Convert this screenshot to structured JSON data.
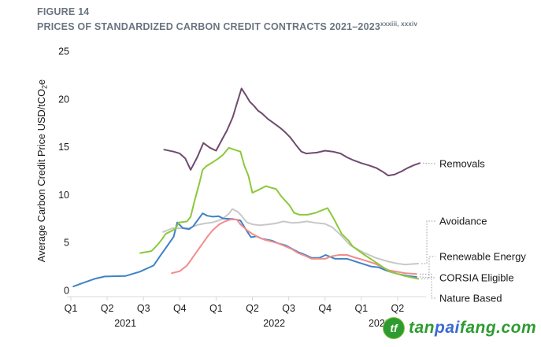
{
  "header": {
    "figure_label": "FIGURE 14",
    "title": "PRICES OF STANDARDIZED CARBON CREDIT CONTRACTS 2021–2023",
    "title_superscript": "xxxiii, xxxiv"
  },
  "chart_data": {
    "type": "line",
    "title": "PRICES OF STANDARDIZED CARBON CREDIT CONTRACTS 2021–2023",
    "ylabel": "Average Carbon Credit Price USD/tCO2e",
    "ylabel_parts": {
      "main": "Average Carbon Credit Price USD/tCO",
      "sub": "2",
      "tail": "e"
    },
    "ylim": [
      0,
      25
    ],
    "yticks": [
      0,
      5,
      10,
      15,
      20,
      25
    ],
    "grid": false,
    "legend_position": "right-of-line-ends",
    "axis_color": "#d8d8d8",
    "connector_color": "#999999",
    "text_color": "#1a1a1a",
    "x_axis": {
      "unit": "quarter index from Q1 2021",
      "quarter_labels": [
        "Q1",
        "Q2",
        "Q3",
        "Q4",
        "Q1",
        "Q2",
        "Q3",
        "Q4",
        "Q1",
        "Q2"
      ],
      "year_labels": [
        {
          "label": "2021",
          "center_q": 1.5
        },
        {
          "label": "2022",
          "center_q": 5.6
        },
        {
          "label": "2023",
          "center_q": 8.5
        }
      ]
    },
    "series": [
      {
        "name": "Avoidance",
        "color": "#c8c8c8",
        "points": [
          [
            2.54,
            6.1
          ],
          [
            2.8,
            6.5
          ],
          [
            3.0,
            6.5
          ],
          [
            3.25,
            6.5
          ],
          [
            3.5,
            6.85
          ],
          [
            3.7,
            7.0
          ],
          [
            3.9,
            7.1
          ],
          [
            4.15,
            7.4
          ],
          [
            4.35,
            8.0
          ],
          [
            4.45,
            8.5
          ],
          [
            4.6,
            8.2
          ],
          [
            4.7,
            7.8
          ],
          [
            4.85,
            7.1
          ],
          [
            5.0,
            6.9
          ],
          [
            5.2,
            6.8
          ],
          [
            5.45,
            6.9
          ],
          [
            5.65,
            7.0
          ],
          [
            5.85,
            7.2
          ],
          [
            6.1,
            7.05
          ],
          [
            6.3,
            7.1
          ],
          [
            6.5,
            7.2
          ],
          [
            6.75,
            7.05
          ],
          [
            7.0,
            6.95
          ],
          [
            7.2,
            6.6
          ],
          [
            7.4,
            5.9
          ],
          [
            7.7,
            4.7
          ],
          [
            8.04,
            4.0
          ],
          [
            8.4,
            3.4
          ],
          [
            8.75,
            3.0
          ],
          [
            9.0,
            2.8
          ],
          [
            9.2,
            2.7
          ],
          [
            9.57,
            2.8
          ]
        ]
      },
      {
        "name": "CORSIA Eligible",
        "color": "#3e82c6",
        "points": [
          [
            0.07,
            0.4
          ],
          [
            0.35,
            0.8
          ],
          [
            0.65,
            1.2
          ],
          [
            0.93,
            1.45
          ],
          [
            1.5,
            1.5
          ],
          [
            1.9,
            1.95
          ],
          [
            2.28,
            2.6
          ],
          [
            2.46,
            3.6
          ],
          [
            2.61,
            4.4
          ],
          [
            2.83,
            5.6
          ],
          [
            2.93,
            7.1
          ],
          [
            3.09,
            6.5
          ],
          [
            3.26,
            6.4
          ],
          [
            3.37,
            6.7
          ],
          [
            3.63,
            8.05
          ],
          [
            3.76,
            7.8
          ],
          [
            3.91,
            7.7
          ],
          [
            4.07,
            7.75
          ],
          [
            4.2,
            7.5
          ],
          [
            4.46,
            7.45
          ],
          [
            4.67,
            7.3
          ],
          [
            4.83,
            6.3
          ],
          [
            4.96,
            5.55
          ],
          [
            5.11,
            5.65
          ],
          [
            5.26,
            5.4
          ],
          [
            5.54,
            5.2
          ],
          [
            5.72,
            4.9
          ],
          [
            5.91,
            4.7
          ],
          [
            6.09,
            4.35
          ],
          [
            6.26,
            4.0
          ],
          [
            6.46,
            3.7
          ],
          [
            6.63,
            3.4
          ],
          [
            6.85,
            3.4
          ],
          [
            7.02,
            3.7
          ],
          [
            7.28,
            3.3
          ],
          [
            7.61,
            3.3
          ],
          [
            7.93,
            2.9
          ],
          [
            8.26,
            2.5
          ],
          [
            8.48,
            2.4
          ],
          [
            8.74,
            2.0
          ],
          [
            9.02,
            1.7
          ],
          [
            9.3,
            1.5
          ],
          [
            9.52,
            1.4
          ]
        ]
      },
      {
        "name": "Nature Based",
        "color": "#f28c8c",
        "points": [
          [
            2.78,
            1.8
          ],
          [
            3.0,
            2.0
          ],
          [
            3.2,
            2.6
          ],
          [
            3.33,
            3.3
          ],
          [
            3.48,
            4.1
          ],
          [
            3.63,
            4.9
          ],
          [
            3.76,
            5.6
          ],
          [
            3.91,
            6.3
          ],
          [
            4.09,
            6.9
          ],
          [
            4.24,
            7.2
          ],
          [
            4.39,
            7.4
          ],
          [
            4.57,
            7.4
          ],
          [
            4.67,
            6.9
          ],
          [
            4.85,
            6.3
          ],
          [
            5.0,
            5.9
          ],
          [
            5.17,
            5.55
          ],
          [
            5.33,
            5.3
          ],
          [
            5.54,
            5.1
          ],
          [
            5.72,
            4.9
          ],
          [
            5.91,
            4.6
          ],
          [
            6.09,
            4.3
          ],
          [
            6.26,
            3.9
          ],
          [
            6.46,
            3.6
          ],
          [
            6.63,
            3.3
          ],
          [
            6.8,
            3.3
          ],
          [
            7.0,
            3.3
          ],
          [
            7.17,
            3.55
          ],
          [
            7.39,
            3.7
          ],
          [
            7.61,
            3.7
          ],
          [
            7.8,
            3.45
          ],
          [
            8.04,
            3.2
          ],
          [
            8.37,
            2.8
          ],
          [
            8.76,
            2.1
          ],
          [
            9.2,
            1.8
          ],
          [
            9.52,
            1.7
          ]
        ]
      },
      {
        "name": "Renewable Energy",
        "color": "#8cc83c",
        "points": [
          [
            1.91,
            3.9
          ],
          [
            2.22,
            4.1
          ],
          [
            2.35,
            4.6
          ],
          [
            2.5,
            5.3
          ],
          [
            2.61,
            5.9
          ],
          [
            2.87,
            6.4
          ],
          [
            2.98,
            7.1
          ],
          [
            3.2,
            7.2
          ],
          [
            3.3,
            7.7
          ],
          [
            3.41,
            9.4
          ],
          [
            3.54,
            11.2
          ],
          [
            3.63,
            12.6
          ],
          [
            3.74,
            13.0
          ],
          [
            3.91,
            13.4
          ],
          [
            4.07,
            13.8
          ],
          [
            4.2,
            14.2
          ],
          [
            4.35,
            14.9
          ],
          [
            4.5,
            14.7
          ],
          [
            4.67,
            14.5
          ],
          [
            4.78,
            13.0
          ],
          [
            4.89,
            12.0
          ],
          [
            5.0,
            10.2
          ],
          [
            5.17,
            10.5
          ],
          [
            5.37,
            10.9
          ],
          [
            5.54,
            10.7
          ],
          [
            5.65,
            10.6
          ],
          [
            5.8,
            9.8
          ],
          [
            6.02,
            8.9
          ],
          [
            6.15,
            8.1
          ],
          [
            6.3,
            7.9
          ],
          [
            6.52,
            7.9
          ],
          [
            6.74,
            8.1
          ],
          [
            7.07,
            8.6
          ],
          [
            7.24,
            7.5
          ],
          [
            7.46,
            5.9
          ],
          [
            7.65,
            5.2
          ],
          [
            7.76,
            4.6
          ],
          [
            8.09,
            3.7
          ],
          [
            8.41,
            2.9
          ],
          [
            8.76,
            2.0
          ],
          [
            9.2,
            1.5
          ],
          [
            9.57,
            1.2
          ]
        ]
      },
      {
        "name": "Removals",
        "color": "#6e4a70",
        "points": [
          [
            2.57,
            14.7
          ],
          [
            2.83,
            14.5
          ],
          [
            3.0,
            14.3
          ],
          [
            3.15,
            13.8
          ],
          [
            3.3,
            12.6
          ],
          [
            3.48,
            13.9
          ],
          [
            3.65,
            15.4
          ],
          [
            3.83,
            14.9
          ],
          [
            4.0,
            14.6
          ],
          [
            4.17,
            15.8
          ],
          [
            4.3,
            16.7
          ],
          [
            4.46,
            18.1
          ],
          [
            4.57,
            19.5
          ],
          [
            4.7,
            21.1
          ],
          [
            4.82,
            20.4
          ],
          [
            4.93,
            19.7
          ],
          [
            5.04,
            19.3
          ],
          [
            5.15,
            18.8
          ],
          [
            5.26,
            18.5
          ],
          [
            5.43,
            17.9
          ],
          [
            5.58,
            17.5
          ],
          [
            5.76,
            17.0
          ],
          [
            5.91,
            16.5
          ],
          [
            6.04,
            16.0
          ],
          [
            6.2,
            15.2
          ],
          [
            6.35,
            14.5
          ],
          [
            6.48,
            14.3
          ],
          [
            6.63,
            14.35
          ],
          [
            6.78,
            14.4
          ],
          [
            7.0,
            14.6
          ],
          [
            7.22,
            14.5
          ],
          [
            7.43,
            14.3
          ],
          [
            7.61,
            13.9
          ],
          [
            7.78,
            13.6
          ],
          [
            8.0,
            13.3
          ],
          [
            8.22,
            13.05
          ],
          [
            8.41,
            12.8
          ],
          [
            8.59,
            12.4
          ],
          [
            8.74,
            12.0
          ],
          [
            8.91,
            12.1
          ],
          [
            9.09,
            12.4
          ],
          [
            9.28,
            12.8
          ],
          [
            9.46,
            13.1
          ],
          [
            9.61,
            13.3
          ]
        ]
      }
    ],
    "legend_labels": [
      "Removals",
      "Avoidance",
      "Renewable Energy",
      "CORSIA Eligible",
      "Nature Based"
    ]
  },
  "watermark": {
    "logo_text": "tf",
    "logo_color": "#2e9b31",
    "parts": [
      {
        "text": "tan",
        "color": "#2e9b31"
      },
      {
        "text": "pai",
        "color": "#3a6ad4"
      },
      {
        "text": "fang",
        "color": "#2e9b31"
      },
      {
        "text": ".com",
        "color": "#2e9b31"
      }
    ]
  }
}
